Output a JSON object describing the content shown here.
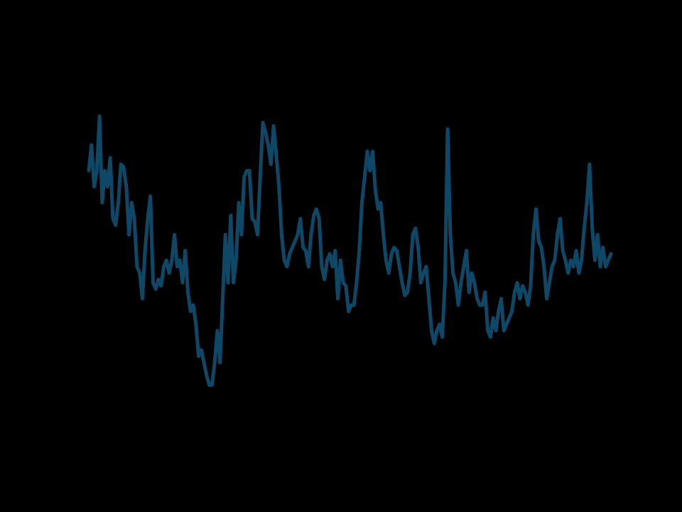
{
  "chart_data": {
    "type": "line",
    "title": "",
    "xlabel": "",
    "ylabel": "",
    "grid": false,
    "legend": "none",
    "line_color": "#0f4766",
    "background_color": "#000000",
    "ylim": [
      0,
      100
    ],
    "series": [
      {
        "values": [
          80,
          88,
          75,
          80,
          97,
          70,
          80,
          75,
          84,
          65,
          63,
          70,
          82,
          81,
          75,
          60,
          70,
          65,
          50,
          48,
          40,
          55,
          65,
          72,
          45,
          43,
          46,
          44,
          50,
          52,
          48,
          52,
          60,
          50,
          52,
          45,
          55,
          42,
          36,
          38,
          32,
          22,
          24,
          20,
          16,
          13,
          13,
          20,
          30,
          20,
          40,
          60,
          45,
          66,
          45,
          52,
          70,
          60,
          78,
          80,
          80,
          65,
          64,
          60,
          78,
          95,
          92,
          88,
          82,
          94,
          85,
          75,
          60,
          52,
          50,
          54,
          56,
          58,
          60,
          65,
          56,
          55,
          50,
          60,
          66,
          68,
          65,
          50,
          46,
          52,
          54,
          50,
          55,
          40,
          52,
          45,
          44,
          36,
          38,
          38,
          45,
          55,
          70,
          78,
          86,
          80,
          86,
          74,
          68,
          70,
          60,
          52,
          48,
          54,
          56,
          55,
          50,
          45,
          41,
          42,
          48,
          60,
          62,
          56,
          45,
          48,
          50,
          40,
          30,
          26,
          30,
          32,
          28,
          45,
          93,
          60,
          48,
          45,
          38,
          45,
          50,
          55,
          42,
          48,
          45,
          40,
          38,
          38,
          42,
          30,
          28,
          34,
          30,
          36,
          40,
          30,
          32,
          34,
          36,
          42,
          45,
          40,
          44,
          42,
          38,
          44,
          60,
          68,
          58,
          56,
          50,
          40,
          45,
          50,
          52,
          60,
          65,
          55,
          52,
          48,
          52,
          50,
          55,
          48,
          52,
          62,
          70,
          82,
          62,
          52,
          60,
          50,
          56,
          50,
          52,
          54
        ]
      }
    ]
  }
}
